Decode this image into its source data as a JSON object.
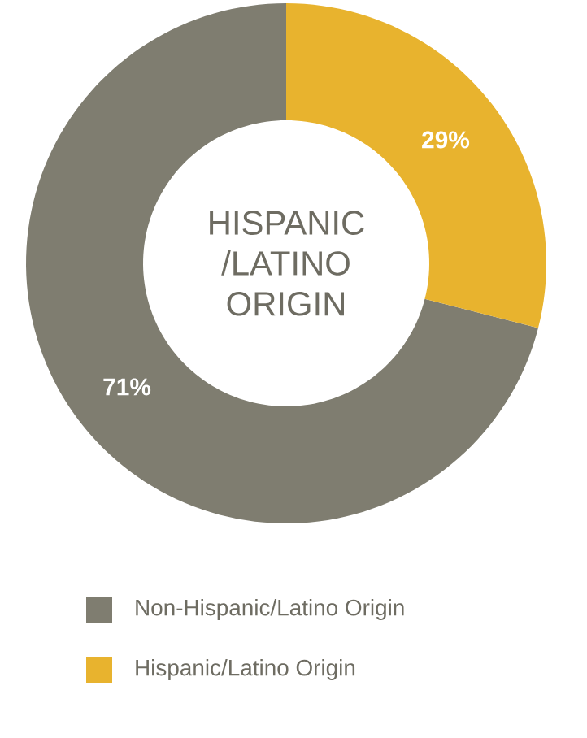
{
  "chart_data": {
    "type": "donut",
    "title": "HISPANIC /LATINO ORIGIN",
    "categories": [
      "Non-Hispanic/Latino Origin",
      "Hispanic/Latino Origin"
    ],
    "values": [
      71,
      29
    ],
    "colors": [
      "#7f7d70",
      "#e8b32e"
    ],
    "value_labels": [
      "71%",
      "29%"
    ],
    "legend": "bottom"
  }
}
